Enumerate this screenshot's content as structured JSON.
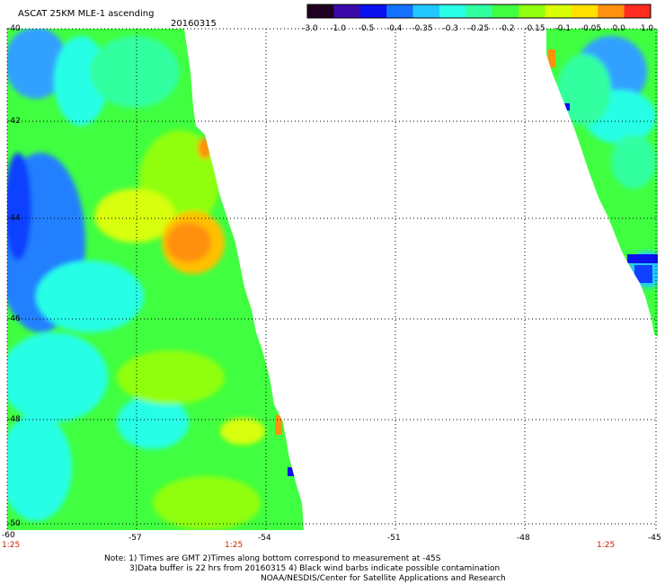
{
  "title": "ASCAT 25KM MLE-1 ascending",
  "date": "20160315",
  "colorbar": {
    "labels": [
      "-3.0",
      "-1.0",
      "-0.5",
      "-0.4",
      "-0.35",
      "-0.3",
      "-0.25",
      "-0.2",
      "-0.15",
      "-0.1",
      "-0.05",
      "0.0",
      "1.0"
    ],
    "colors": [
      "#200020",
      "#3a0aa8",
      "#0a10ee",
      "#1470ff",
      "#20c8ff",
      "#28ffe6",
      "#30ffa0",
      "#40ff40",
      "#90ff10",
      "#d8ff08",
      "#ffe000",
      "#ff9010",
      "#ff2a20"
    ]
  },
  "axes": {
    "lon_labels": [
      "-60",
      "-57",
      "-54",
      "-51",
      "-48",
      "-45"
    ],
    "lat_labels": [
      "-40",
      "-42",
      "-44",
      "-46",
      "-48",
      "-50"
    ]
  },
  "time_labels": [
    "1:25",
    "1:25",
    "1:25"
  ],
  "notes": [
    "Note: 1) Times are GMT 2)Times along bottom correspond to measurement at -45S",
    "3)Data buffer is 22 hrs from 20160315 4) Black wind barbs indicate possible contamination",
    "NOAA/NESDIS/Center for Satellite Applications and Research"
  ]
}
